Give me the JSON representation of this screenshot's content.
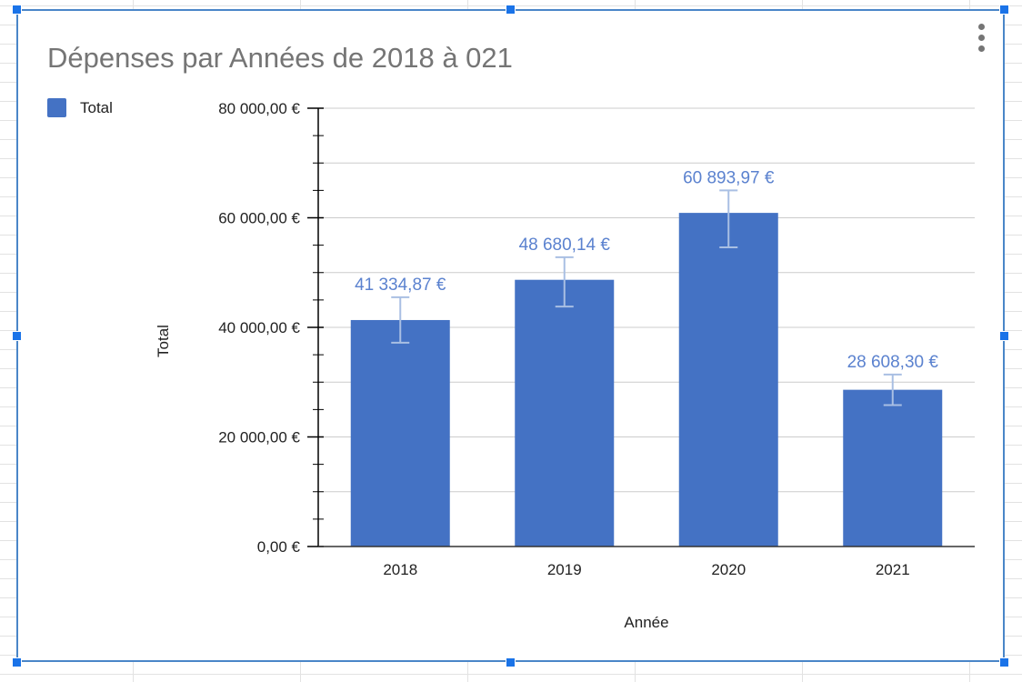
{
  "chart_data": {
    "type": "bar",
    "title": "Dépenses par Années de 2018 à 021",
    "xlabel": "Année",
    "ylabel": "Total",
    "categories": [
      "2018",
      "2019",
      "2020",
      "2021"
    ],
    "series": [
      {
        "name": "Total",
        "values": [
          41334.87,
          48680.14,
          60893.97,
          28608.3
        ],
        "value_labels": [
          "41 334,87 €",
          "48 680,14 €",
          "60 893,97 €",
          "28 608,30 €"
        ],
        "error_low": [
          37200,
          43800,
          54600,
          25800
        ],
        "error_high": [
          45500,
          52800,
          65000,
          31400
        ]
      }
    ],
    "ylim": [
      0,
      80000
    ],
    "yticks": [
      0,
      20000,
      40000,
      60000,
      80000
    ],
    "ytick_labels": [
      "0,00 €",
      "20 000,00 €",
      "40 000,00 €",
      "60 000,00 €",
      "80 000,00 €"
    ],
    "grid": true,
    "legend_position": "top-left",
    "colors": {
      "bar": "#4472c4",
      "label": "#5b82cf",
      "error_bar": "#a9bfe3",
      "grid": "#cccccc",
      "axis": "#000000",
      "title": "#757575"
    }
  }
}
